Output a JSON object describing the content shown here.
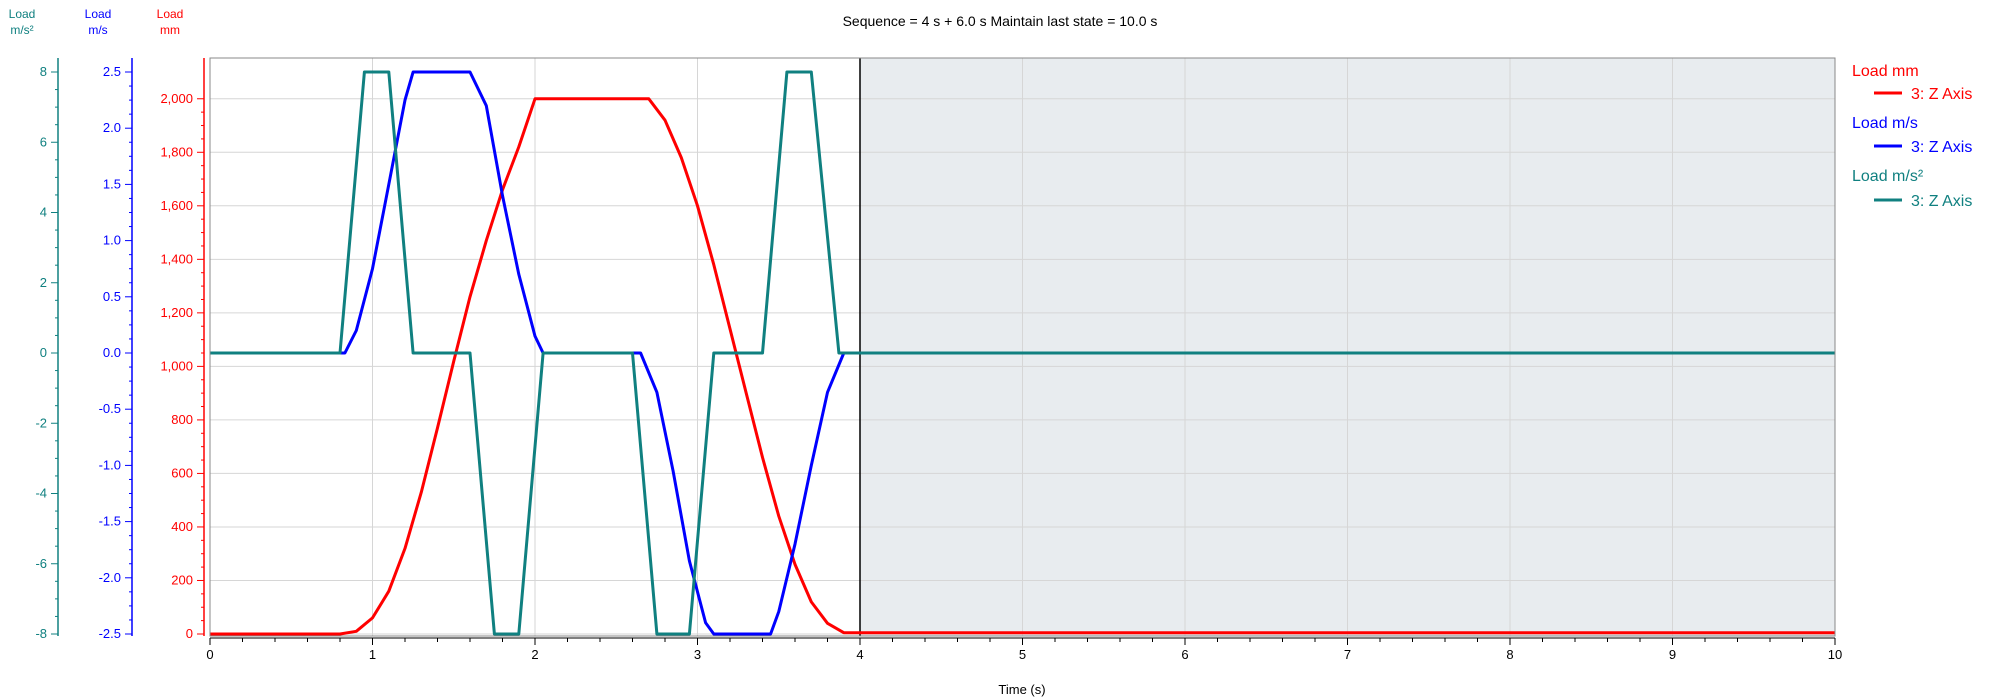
{
  "chart_data": {
    "type": "line",
    "title": "Sequence = 4 s + 6.0 s Maintain last state = 10.0 s",
    "xlabel": "Time  (s)",
    "xlim": [
      0,
      10
    ],
    "x_ticks": [
      "0",
      "1",
      "2",
      "3",
      "4",
      "5",
      "6",
      "7",
      "8",
      "9",
      "10"
    ],
    "shaded_region": [
      4,
      10
    ],
    "grid": true,
    "legend_position": "right",
    "colors": {
      "mm": "#ff0000",
      "ms": "#0000ff",
      "ms2": "#108080",
      "shade": "#e8ecef"
    },
    "axes": {
      "mm": {
        "label_top": "Load",
        "label_bottom": "mm",
        "ylim": [
          0,
          2100
        ],
        "ticks": [
          "0",
          "200",
          "400",
          "600",
          "800",
          "1,000",
          "1,200",
          "1,400",
          "1,600",
          "1,800",
          "2,000"
        ]
      },
      "ms": {
        "label_top": "Load",
        "label_bottom": "m/s",
        "ylim": [
          -2.5,
          2.5
        ],
        "ticks": [
          "-2.5",
          "-2.0",
          "-1.5",
          "-1.0",
          "-0.5",
          "0.0",
          "0.5",
          "1.0",
          "1.5",
          "2.0",
          "2.5"
        ]
      },
      "ms2": {
        "label_top": "Load",
        "label_bottom": "m/s²",
        "ylim": [
          -8,
          8
        ],
        "ticks": [
          "-8",
          "-6",
          "-4",
          "-2",
          "0",
          "2",
          "4",
          "6",
          "8"
        ]
      }
    },
    "legend": [
      {
        "title": "Load mm",
        "entry": "3: Z Axis"
      },
      {
        "title": "Load m/s",
        "entry": "3: Z Axis"
      },
      {
        "title": "Load m/s²",
        "entry": "3: Z Axis"
      }
    ],
    "series": [
      {
        "key": "mm",
        "x": [
          0,
          0.8,
          0.9,
          1.0,
          1.1,
          1.2,
          1.3,
          1.4,
          1.5,
          1.6,
          1.7,
          1.8,
          1.9,
          2.0,
          2.7,
          2.8,
          2.9,
          3.0,
          3.1,
          3.2,
          3.3,
          3.4,
          3.5,
          3.6,
          3.7,
          3.8,
          3.9,
          10
        ],
        "y": [
          0,
          0,
          10,
          60,
          160,
          320,
          530,
          770,
          1020,
          1260,
          1470,
          1660,
          1820,
          2000,
          2000,
          1920,
          1780,
          1600,
          1380,
          1140,
          900,
          660,
          440,
          260,
          120,
          40,
          5,
          5
        ]
      },
      {
        "key": "ms",
        "x": [
          0,
          0.83,
          0.9,
          1.0,
          1.1,
          1.2,
          1.25,
          1.6,
          1.7,
          1.8,
          1.9,
          2.0,
          2.05,
          2.65,
          2.75,
          2.85,
          2.95,
          3.05,
          3.1,
          3.45,
          3.5,
          3.6,
          3.7,
          3.8,
          3.9,
          10
        ],
        "y": [
          0,
          0,
          0.2,
          0.75,
          1.5,
          2.25,
          2.5,
          2.5,
          2.2,
          1.4,
          0.7,
          0.15,
          0,
          0,
          -0.35,
          -1.05,
          -1.85,
          -2.4,
          -2.5,
          -2.5,
          -2.3,
          -1.7,
          -1.0,
          -0.35,
          0,
          0
        ]
      },
      {
        "key": "ms2",
        "x": [
          0,
          0.8,
          0.95,
          1.1,
          1.25,
          1.6,
          1.75,
          1.9,
          2.05,
          2.6,
          2.75,
          2.95,
          3.1,
          3.4,
          3.55,
          3.7,
          3.87,
          10
        ],
        "y": [
          0,
          0,
          8,
          8,
          0,
          0,
          -8,
          -8,
          0,
          0,
          -8,
          -8,
          0,
          0,
          8,
          8,
          0,
          0
        ]
      }
    ]
  }
}
